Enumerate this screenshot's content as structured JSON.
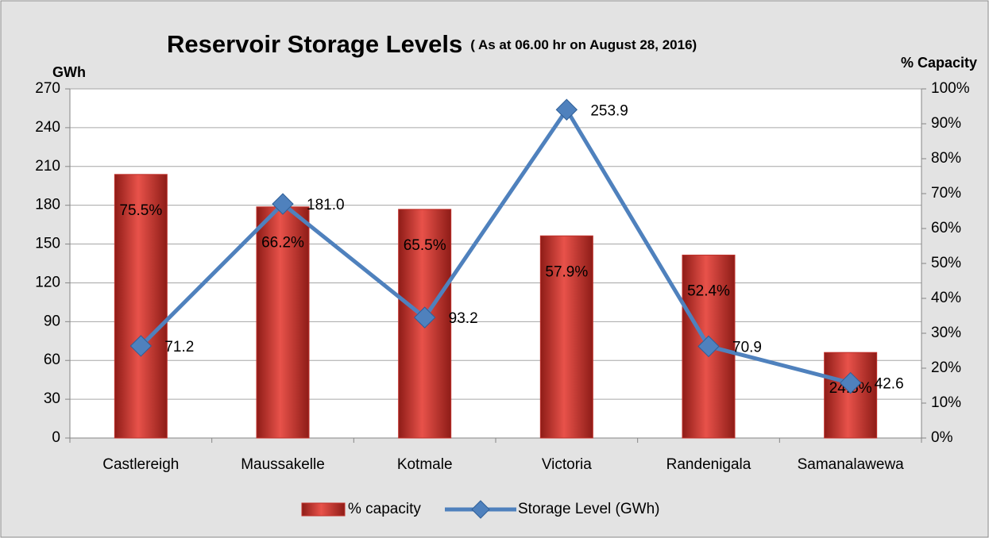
{
  "chart_data": {
    "type": "combo",
    "title": "Reservoir Storage Levels",
    "subtitle": "( As at 06.00 hr on August 28, 2016)",
    "y_label": "GWh",
    "y2_label": "% Capacity",
    "categories": [
      "Castlereigh",
      "Maussakelle",
      "Kotmale",
      "Victoria",
      "Randenigala",
      "Samanalawewa"
    ],
    "series": [
      {
        "name": "% capacity",
        "type": "bar",
        "axis": "y2",
        "color": "#c0312b",
        "values": [
          75.5,
          66.2,
          65.5,
          57.9,
          52.4,
          24.5
        ],
        "value_labels": [
          "75.5%",
          "66.2%",
          "65.5%",
          "57.9%",
          "52.4%",
          "24.5%"
        ]
      },
      {
        "name": "Storage Level (GWh)",
        "type": "line",
        "axis": "y",
        "color": "#4f81bd",
        "values": [
          71.2,
          181.0,
          93.2,
          253.9,
          70.9,
          42.6
        ],
        "value_labels": [
          "71.2",
          "181.0",
          "93.2",
          "253.9",
          "70.9",
          "42.6"
        ]
      }
    ],
    "ylim": [
      0,
      270
    ],
    "yticks": [
      0,
      30,
      60,
      90,
      120,
      150,
      180,
      210,
      240,
      270
    ],
    "y2lim": [
      0,
      100
    ],
    "y2ticks": [
      {
        "value": 0,
        "label": "0%"
      },
      {
        "value": 10,
        "label": "10%"
      },
      {
        "value": 20,
        "label": "20%"
      },
      {
        "value": 30,
        "label": "30%"
      },
      {
        "value": 40,
        "label": "40%"
      },
      {
        "value": 50,
        "label": "50%"
      },
      {
        "value": 60,
        "label": "60%"
      },
      {
        "value": 70,
        "label": "70%"
      },
      {
        "value": 80,
        "label": "80%"
      },
      {
        "value": 90,
        "label": "90%"
      },
      {
        "value": 100,
        "label": "100%"
      }
    ],
    "grid": true,
    "legend": "bottom"
  }
}
